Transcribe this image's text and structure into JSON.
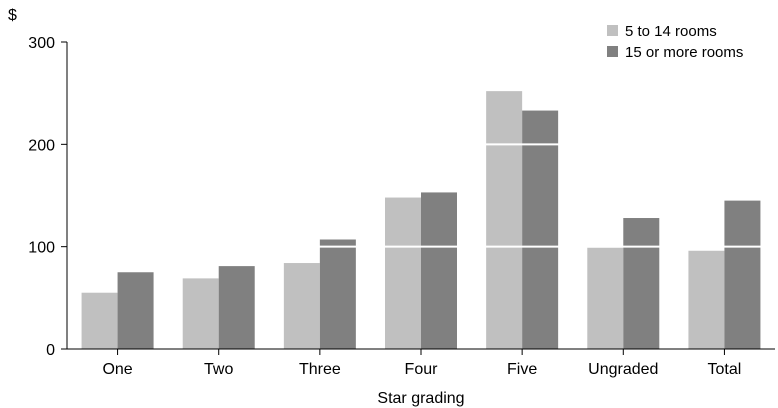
{
  "chart_data": {
    "type": "bar",
    "categories": [
      "One",
      "Two",
      "Three",
      "Four",
      "Five",
      "Ungraded",
      "Total"
    ],
    "series": [
      {
        "name": "5 to 14 rooms",
        "values": [
          55,
          69,
          84,
          148,
          252,
          99,
          96
        ],
        "color": "#c0c0c0"
      },
      {
        "name": "15 or more rooms",
        "values": [
          75,
          81,
          107,
          153,
          233,
          128,
          145
        ],
        "color": "#808080"
      }
    ],
    "xlabel": "Star grading",
    "ylabel": "$",
    "ylim": [
      0,
      300
    ],
    "yticks": [
      0,
      100,
      200,
      300
    ],
    "gridlines": "white lines drawn across bars at 100 and 200",
    "legend": "top-right"
  }
}
